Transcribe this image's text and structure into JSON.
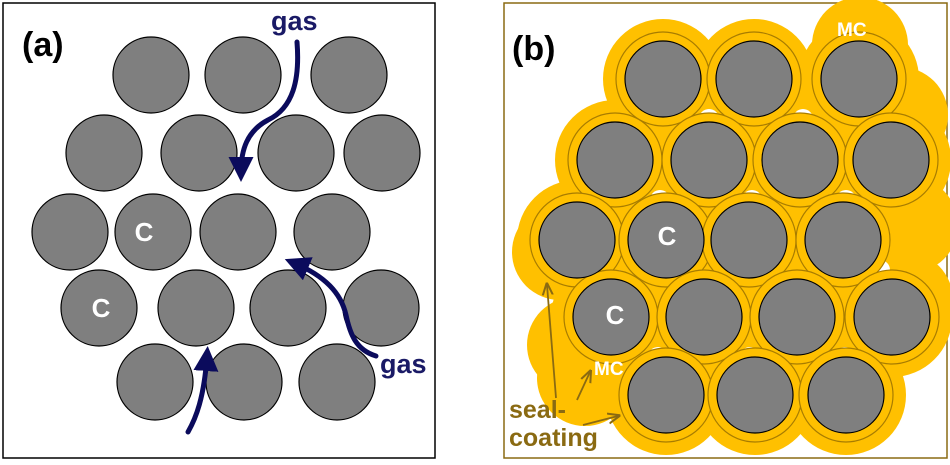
{
  "panel_a": {
    "label": "(a)",
    "particle_label": "C",
    "gas_label_top": "gas",
    "gas_label_right": "gas"
  },
  "panel_b": {
    "label": "(b)",
    "particle_label": "C",
    "mc_label_top": "MC",
    "mc_label_bottom": "MC",
    "seal_line1": "seal-",
    "seal_line2": "coating"
  },
  "colors": {
    "particle": "#7f7f7f",
    "particle_stroke": "#000000",
    "coating": "#ffc000",
    "coating_stroke": "#a87c00",
    "arrow": "#0b0b5c",
    "gas_text": "#1a1a66",
    "annotation": "#8a6a12",
    "frame_a": "#000000",
    "frame_b": "#8a6a12"
  },
  "icons": {
    "gas_arrow": "curved-arrow-icon",
    "pointer_arrow": "arrow-pointer-icon"
  }
}
